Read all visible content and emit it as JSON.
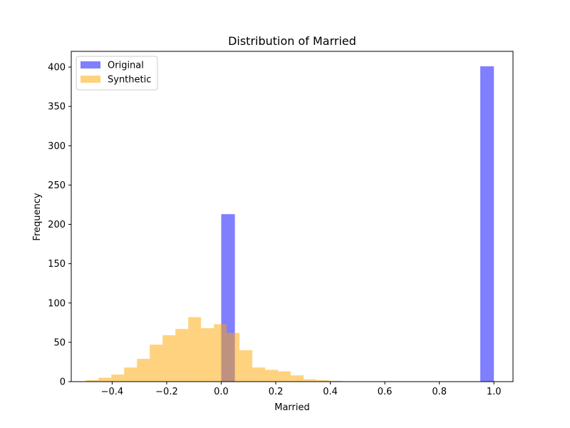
{
  "chart_data": {
    "type": "bar",
    "title": "Distribution of Married",
    "xlabel": "Married",
    "ylabel": "Frequency",
    "xlim": [
      -0.55,
      1.07
    ],
    "ylim": [
      0,
      420
    ],
    "xticks": [
      -0.4,
      -0.2,
      0.0,
      0.2,
      0.4,
      0.6,
      0.8,
      1.0
    ],
    "xtick_labels": [
      "−0.4",
      "−0.2",
      "0.0",
      "0.2",
      "0.4",
      "0.6",
      "0.8",
      "1.0"
    ],
    "yticks": [
      0,
      50,
      100,
      150,
      200,
      250,
      300,
      350,
      400
    ],
    "ytick_labels": [
      "0",
      "50",
      "100",
      "150",
      "200",
      "250",
      "300",
      "350",
      "400"
    ],
    "grid": false,
    "legend_position": "top-left",
    "series": [
      {
        "name": "Original",
        "color": "#0000ff",
        "opacity": 0.5,
        "bins": [
          {
            "x0": 0.0,
            "x1": 0.05,
            "count": 213
          },
          {
            "x0": 0.95,
            "x1": 1.0,
            "count": 401
          }
        ]
      },
      {
        "name": "Synthetic",
        "color": "#ffa500",
        "opacity": 0.5,
        "bins": [
          {
            "x0": -0.497,
            "x1": -0.45,
            "count": 2
          },
          {
            "x0": -0.45,
            "x1": -0.403,
            "count": 5
          },
          {
            "x0": -0.403,
            "x1": -0.356,
            "count": 9
          },
          {
            "x0": -0.356,
            "x1": -0.309,
            "count": 18
          },
          {
            "x0": -0.309,
            "x1": -0.262,
            "count": 29
          },
          {
            "x0": -0.262,
            "x1": -0.215,
            "count": 47
          },
          {
            "x0": -0.215,
            "x1": -0.168,
            "count": 59
          },
          {
            "x0": -0.168,
            "x1": -0.121,
            "count": 67
          },
          {
            "x0": -0.121,
            "x1": -0.074,
            "count": 82
          },
          {
            "x0": -0.074,
            "x1": -0.027,
            "count": 68
          },
          {
            "x0": -0.027,
            "x1": 0.02,
            "count": 73
          },
          {
            "x0": 0.02,
            "x1": 0.067,
            "count": 62
          },
          {
            "x0": 0.067,
            "x1": 0.114,
            "count": 40
          },
          {
            "x0": 0.114,
            "x1": 0.161,
            "count": 18
          },
          {
            "x0": 0.161,
            "x1": 0.208,
            "count": 15
          },
          {
            "x0": 0.208,
            "x1": 0.255,
            "count": 13
          },
          {
            "x0": 0.255,
            "x1": 0.302,
            "count": 8
          },
          {
            "x0": 0.302,
            "x1": 0.349,
            "count": 3
          },
          {
            "x0": 0.349,
            "x1": 0.396,
            "count": 2
          },
          {
            "x0": 0.396,
            "x1": 0.443,
            "count": 1
          }
        ]
      }
    ]
  }
}
